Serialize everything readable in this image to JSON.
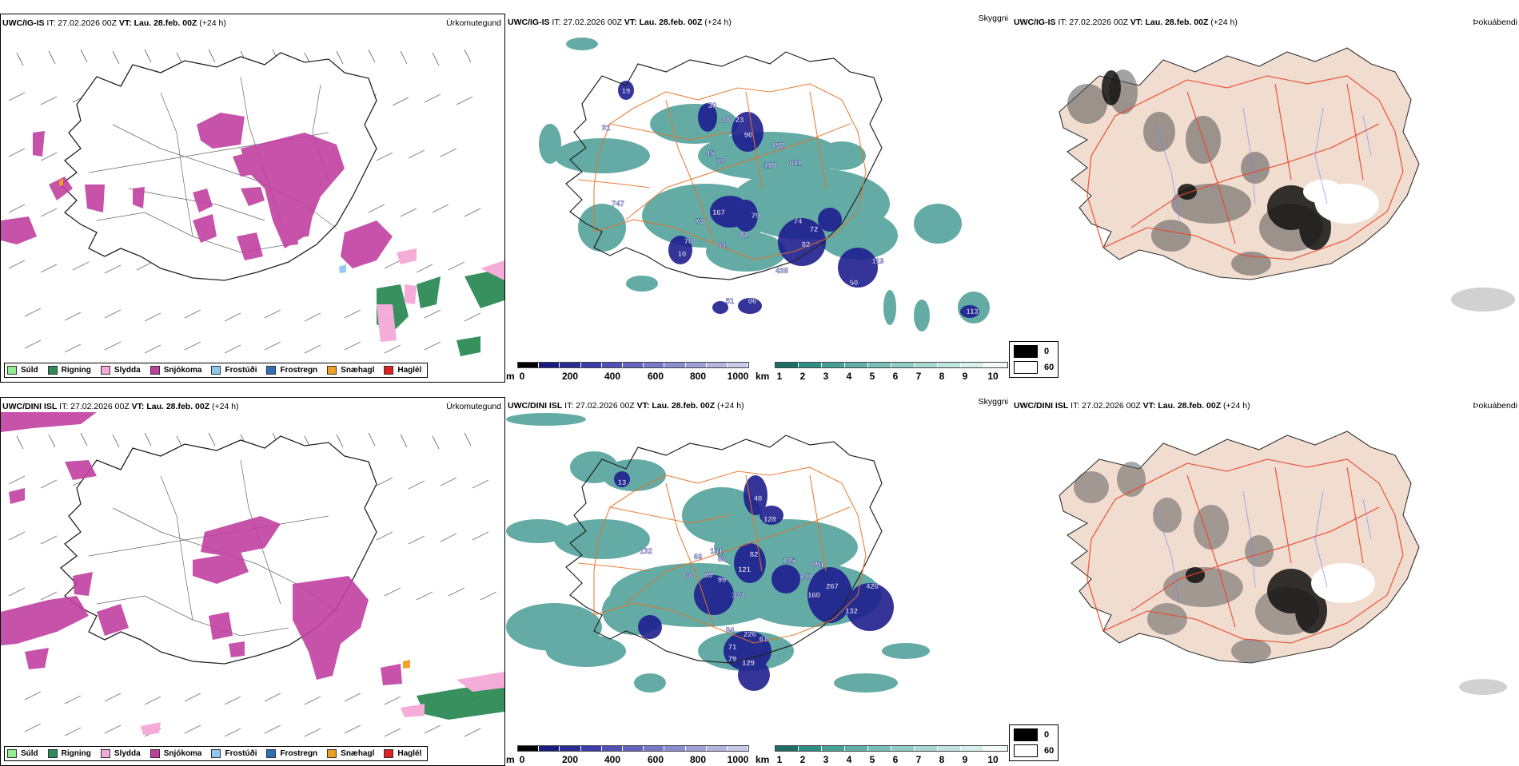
{
  "rows": [
    {
      "model": "UWC/IG-IS",
      "it": "IT: 27.02.2026 00Z",
      "vt_label": "VT:",
      "vt": "Lau. 28.feb. 00Z",
      "lead": "(+24 h)",
      "cloud_numbers": [
        "19",
        "30",
        "31",
        "28",
        "23",
        "90",
        "45",
        "74",
        "192",
        "611",
        "118",
        "747",
        "167",
        "79",
        "73",
        "74",
        "72",
        "76",
        "82",
        "64",
        "82",
        "10",
        "438",
        "119",
        "50",
        "51",
        "06",
        "113"
      ],
      "fog_label": "Þokuábendi"
    },
    {
      "model": "UWC/DINI ISL",
      "it": "IT: 27.02.2026 00Z",
      "vt_label": "VT:",
      "vt": "Lau. 28.feb. 00Z",
      "lead": "(+24 h)",
      "cloud_numbers": [
        "13",
        "40",
        "128",
        "132",
        "131",
        "82",
        "145",
        "991",
        "88",
        "69",
        "121",
        "147",
        "68",
        "89",
        "99",
        "267",
        "426",
        "160",
        "333",
        "132",
        "84",
        "226",
        "61",
        "71",
        "79",
        "129"
      ],
      "fog_label": "Þokuábendi"
    }
  ],
  "precip_title": "Úrkomutegund",
  "cloud_title": "Skyggni",
  "precip_legend": [
    {
      "label": "Súld",
      "color": "#90ee90"
    },
    {
      "label": "Rigning",
      "color": "#2e8b57"
    },
    {
      "label": "Slydda",
      "color": "#f4a8d8"
    },
    {
      "label": "Snjókoma",
      "color": "#c040a0"
    },
    {
      "label": "Frostúði",
      "color": "#8ec8f0"
    },
    {
      "label": "Frostregn",
      "color": "#2f6fb5"
    },
    {
      "label": "Snæhagl",
      "color": "#f0a020"
    },
    {
      "label": "Haglél",
      "color": "#e02020"
    }
  ],
  "height_scale": {
    "unit": "m",
    "ticks": [
      "0",
      "200",
      "400",
      "600",
      "800",
      "1000"
    ]
  },
  "km_scale": {
    "unit": "km",
    "ticks": [
      "1",
      "2",
      "3",
      "4",
      "5",
      "6",
      "7",
      "8",
      "9",
      "10"
    ]
  },
  "fog_legend": {
    "black": "0",
    "white": "60"
  },
  "colors": {
    "snow": "#c040a0",
    "rain": "#2e8b57",
    "sleet": "#f4a8d8",
    "teal": "#2f8f86",
    "navy": "#1f1f8f",
    "road": "#e8732a",
    "fogbg": "#f1ddd0"
  }
}
